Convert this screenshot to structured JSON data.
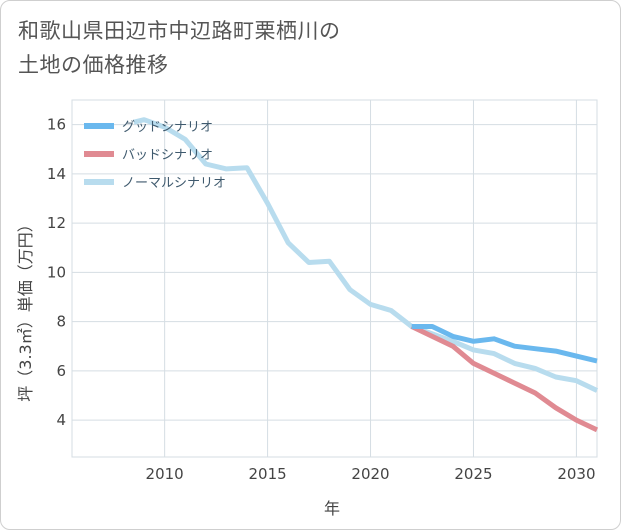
{
  "title_line1": "和歌山県田辺市中辺路町栗栖川の",
  "title_line2": "土地の価格推移",
  "chart_data": {
    "type": "line",
    "xlabel": "年",
    "ylabel": "坪（3.3㎡）単価（万円）",
    "xlim": [
      2005.5,
      2031
    ],
    "ylim": [
      2.5,
      17
    ],
    "xticks": [
      2010,
      2015,
      2020,
      2025,
      2030
    ],
    "yticks": [
      4,
      6,
      8,
      10,
      12,
      14,
      16
    ],
    "grid": true,
    "legend_position": "top-left",
    "series": [
      {
        "name": "グッドシナリオ",
        "color": "#6ab8ee",
        "x": [
          2022,
          2023,
          2024,
          2025,
          2026,
          2027,
          2028,
          2029,
          2030,
          2031
        ],
        "y": [
          7.8,
          7.8,
          7.4,
          7.2,
          7.3,
          7.0,
          6.9,
          6.8,
          6.6,
          6.4
        ]
      },
      {
        "name": "バッドシナリオ",
        "color": "#e08a92",
        "x": [
          2022,
          2023,
          2024,
          2025,
          2026,
          2027,
          2028,
          2029,
          2030,
          2031
        ],
        "y": [
          7.8,
          7.4,
          7.0,
          6.3,
          5.9,
          5.5,
          5.1,
          4.5,
          4.0,
          3.6
        ]
      },
      {
        "name": "ノーマルシナリオ",
        "color": "#b8dcee",
        "x": [
          2008.5,
          2009,
          2010,
          2011,
          2012,
          2013,
          2014,
          2015,
          2016,
          2017,
          2018,
          2019,
          2020,
          2021,
          2022,
          2023,
          2024,
          2025,
          2026,
          2027,
          2028,
          2029,
          2030,
          2031
        ],
        "y": [
          16.1,
          16.2,
          15.9,
          15.4,
          14.4,
          14.2,
          14.25,
          12.8,
          11.2,
          10.4,
          10.45,
          9.3,
          8.7,
          8.45,
          7.8,
          7.5,
          7.2,
          6.85,
          6.7,
          6.3,
          6.1,
          5.75,
          5.6,
          5.2
        ]
      }
    ]
  }
}
